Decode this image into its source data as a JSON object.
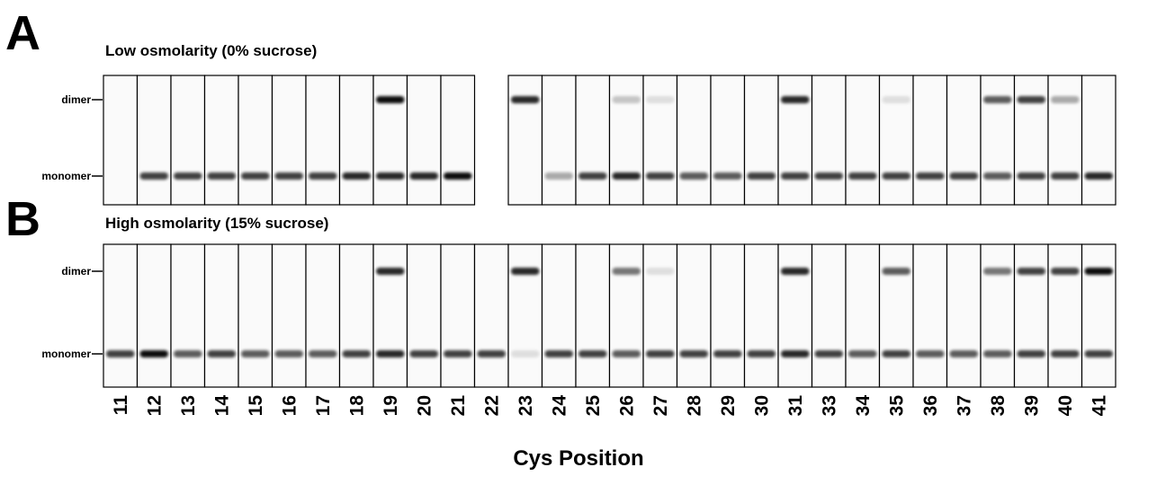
{
  "panels": [
    {
      "letter": "A",
      "title": "Low osmolarity (0% sucrose)",
      "labels": [
        "dimer",
        "monomer"
      ]
    },
    {
      "letter": "B",
      "title": "High osmolarity (15% sucrose)",
      "labels": [
        "dimer",
        "monomer"
      ]
    }
  ],
  "lanes": [
    "11",
    "12",
    "13",
    "14",
    "15",
    "16",
    "17",
    "18",
    "19",
    "20",
    "21",
    "22",
    "23",
    "24",
    "25",
    "26",
    "27",
    "28",
    "29",
    "30",
    "31",
    "33",
    "34",
    "35",
    "36",
    "37",
    "38",
    "39",
    "40",
    "41"
  ],
  "x_label": "Cys Position"
}
